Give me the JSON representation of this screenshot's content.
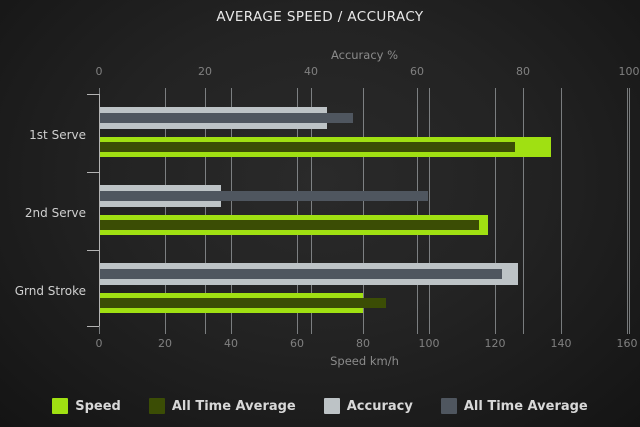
{
  "chart_data": {
    "type": "bar",
    "orientation": "horizontal",
    "title": "AVERAGE SPEED / ACCURACY",
    "categories": [
      "1st Serve",
      "2nd Serve",
      "Grnd Stroke"
    ],
    "series": [
      {
        "name": "Speed",
        "axis": "bottom",
        "role": "main",
        "color": "#a0e012",
        "values": [
          137,
          118,
          80
        ]
      },
      {
        "name": "All Time Average",
        "axis": "bottom",
        "role": "inset",
        "color": "#3b4d05",
        "values": [
          126,
          115,
          87
        ]
      },
      {
        "name": "Accuracy",
        "axis": "top",
        "role": "main",
        "color": "#bdc3c6",
        "values": [
          43,
          23,
          79
        ]
      },
      {
        "name": "All Time Average",
        "axis": "top",
        "role": "inset",
        "color": "#4f565f",
        "values": [
          48,
          62,
          76
        ]
      }
    ],
    "axes": {
      "top": {
        "label": "Accuracy %",
        "min": 0,
        "max": 100,
        "tick_step": 20,
        "ticks": [
          "0",
          "20",
          "40",
          "60",
          "80",
          "100"
        ]
      },
      "bottom": {
        "label": "Speed km/h",
        "min": 0,
        "max": 160,
        "tick_step": 20,
        "ticks": [
          "0",
          "20",
          "40",
          "60",
          "80",
          "100",
          "120",
          "140",
          "160"
        ]
      }
    },
    "grid": {
      "show": true,
      "direction": "vertical",
      "color": "#8f9499"
    },
    "legend": {
      "position": "bottom",
      "items": [
        {
          "label": "Speed",
          "color": "#a0e012"
        },
        {
          "label": "All Time Average",
          "color": "#3b4d05"
        },
        {
          "label": "Accuracy",
          "color": "#bdc3c6"
        },
        {
          "label": "All Time Average",
          "color": "#4f565f"
        }
      ]
    },
    "colors": {
      "background_center": "#2a2a2a",
      "background_edge": "#141414",
      "title_text": "#e8e8e8",
      "axis_label_text": "#8b8b8b",
      "tick_label_text": "#808080",
      "category_label_text": "#cfcfcf",
      "legend_text": "#d8d8d8",
      "axis_line": "#b3b3b3"
    }
  }
}
